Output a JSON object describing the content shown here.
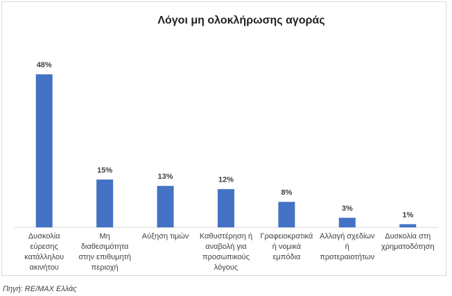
{
  "chart_data": {
    "type": "bar",
    "title": "Λόγοι μη ολοκλήρωσης αγοράς",
    "categories": [
      "Δυσκολία εύρεσης κατάλληλου ακινήτου",
      "Μη διαθεσιμότητα στην επιθυμητή περιοχή",
      "Αύξηση τιμών",
      "Καθυστέρηση ή αναβολή για προσωπικούς λόγους",
      "Γραφειοκρατικά ή νομικά εμπόδια",
      "Αλλαγή σχεδίων ή προτεραιοτήτων",
      "Δυσκολία στη χρηματοδότηση"
    ],
    "values": [
      48,
      15,
      13,
      12,
      8,
      3,
      1
    ],
    "value_labels": [
      "48%",
      "15%",
      "13%",
      "12%",
      "8%",
      "3%",
      "1%"
    ],
    "color": "#4472c4",
    "source": "Πηγή: RE/MAX Ελλάς"
  }
}
